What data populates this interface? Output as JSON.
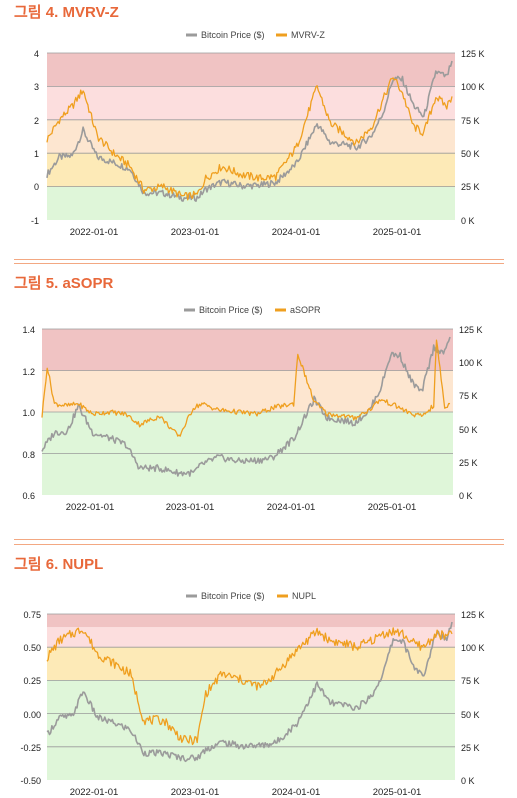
{
  "colors": {
    "title": "#e8683a",
    "price_line": "#9b9b9b",
    "metric_line": "#ef9f1f",
    "zone_red": "#f0c3c3",
    "zone_pink": "#fcdede",
    "zone_peach": "#fde6d0",
    "zone_yellow": "#fdeab7",
    "zone_green": "#dff6d9"
  },
  "panels": [
    {
      "title": "그림 4. MVRV-Z",
      "legend": [
        "Bitcoin Price ($)",
        "MVRV-Z"
      ],
      "left_ticks": [
        "4",
        "3",
        "2",
        "1",
        "0",
        "-1"
      ],
      "right_ticks": [
        "125 K",
        "100 K",
        "75 K",
        "50 K",
        "25 K",
        "0 K"
      ],
      "x_ticks": [
        "2022-01-01",
        "2023-01-01",
        "2024-01-01",
        "2025-01-01"
      ]
    },
    {
      "title": "그림 5. aSOPR",
      "legend": [
        "Bitcoin Price ($)",
        "aSOPR"
      ],
      "left_ticks": [
        "1.4",
        "1.2",
        "1.0",
        "0.8",
        "0.6"
      ],
      "right_ticks": [
        "125 K",
        "100 K",
        "75 K",
        "50 K",
        "25 K",
        "0 K"
      ],
      "x_ticks": [
        "2022-01-01",
        "2023-01-01",
        "2024-01-01",
        "2025-01-01"
      ]
    },
    {
      "title": "그림 6. NUPL",
      "legend": [
        "Bitcoin Price ($)",
        "NUPL"
      ],
      "left_ticks": [
        "0.75",
        "0.50",
        "0.25",
        "0.00",
        "-0.25",
        "-0.50"
      ],
      "right_ticks": [
        "125 K",
        "100 K",
        "75 K",
        "50 K",
        "25 K",
        "0 K"
      ],
      "x_ticks": [
        "2022-01-01",
        "2023-01-01",
        "2024-01-01",
        "2025-01-01"
      ]
    }
  ],
  "chart_data": [
    {
      "type": "line",
      "title": "그림 4. MVRV-Z",
      "x_range": [
        "2021-07-01",
        "2025-07-31"
      ],
      "ylim_left": [
        -1,
        4
      ],
      "ylim_right": [
        0,
        125000
      ],
      "zones_left": [
        [
          3,
          4
        ],
        [
          2,
          3
        ],
        [
          1,
          2
        ],
        [
          0,
          1
        ],
        [
          -1,
          0
        ]
      ],
      "series": [
        {
          "name": "Bitcoin Price ($)",
          "axis": "right",
          "points": [
            [
              "2021-07-01",
              34000
            ],
            [
              "2021-08-15",
              47000
            ],
            [
              "2021-10-01",
              48000
            ],
            [
              "2021-11-10",
              67000
            ],
            [
              "2022-01-01",
              47000
            ],
            [
              "2022-03-01",
              43000
            ],
            [
              "2022-05-01",
              38000
            ],
            [
              "2022-06-20",
              20500
            ],
            [
              "2022-09-01",
              20000
            ],
            [
              "2022-11-10",
              16500
            ],
            [
              "2023-01-01",
              16600
            ],
            [
              "2023-02-01",
              23000
            ],
            [
              "2023-04-01",
              28500
            ],
            [
              "2023-06-15",
              25500
            ],
            [
              "2023-08-20",
              26000
            ],
            [
              "2023-10-15",
              28000
            ],
            [
              "2023-12-31",
              42500
            ],
            [
              "2024-03-14",
              72000
            ],
            [
              "2024-05-01",
              58000
            ],
            [
              "2024-07-05",
              56000
            ],
            [
              "2024-08-05",
              54000
            ],
            [
              "2024-09-30",
              63500
            ],
            [
              "2024-11-10",
              80000
            ],
            [
              "2024-12-17",
              106000
            ],
            [
              "2025-01-20",
              105000
            ],
            [
              "2025-03-01",
              86000
            ],
            [
              "2025-04-08",
              77000
            ],
            [
              "2025-05-22",
              111000
            ],
            [
              "2025-07-01",
              107000
            ],
            [
              "2025-07-20",
              119000
            ]
          ]
        },
        {
          "name": "MVRV-Z",
          "axis": "left",
          "points": [
            [
              "2021-07-01",
              1.4
            ],
            [
              "2021-08-15",
              2.0
            ],
            [
              "2021-10-01",
              2.4
            ],
            [
              "2021-11-10",
              2.9
            ],
            [
              "2022-01-01",
              1.5
            ],
            [
              "2022-03-01",
              1.0
            ],
            [
              "2022-05-01",
              0.6
            ],
            [
              "2022-06-20",
              -0.1
            ],
            [
              "2022-09-01",
              0.0
            ],
            [
              "2022-11-10",
              -0.3
            ],
            [
              "2023-01-01",
              -0.25
            ],
            [
              "2023-02-01",
              0.25
            ],
            [
              "2023-04-01",
              0.6
            ],
            [
              "2023-06-15",
              0.35
            ],
            [
              "2023-08-20",
              0.25
            ],
            [
              "2023-10-15",
              0.3
            ],
            [
              "2023-12-31",
              1.2
            ],
            [
              "2024-03-14",
              3.0
            ],
            [
              "2024-05-01",
              1.9
            ],
            [
              "2024-07-05",
              1.5
            ],
            [
              "2024-08-05",
              1.3
            ],
            [
              "2024-09-30",
              1.8
            ],
            [
              "2024-11-10",
              2.6
            ],
            [
              "2024-12-17",
              3.3
            ],
            [
              "2025-01-20",
              2.8
            ],
            [
              "2025-03-01",
              1.8
            ],
            [
              "2025-04-08",
              1.6
            ],
            [
              "2025-05-22",
              2.7
            ],
            [
              "2025-07-01",
              2.4
            ],
            [
              "2025-07-20",
              2.7
            ]
          ]
        }
      ]
    },
    {
      "type": "line",
      "title": "그림 5. aSOPR",
      "x_range": [
        "2021-07-01",
        "2025-07-31"
      ],
      "ylim_left": [
        0.6,
        1.4
      ],
      "ylim_right": [
        0,
        125000
      ],
      "zones_left": [
        [
          1.2,
          1.4
        ],
        [
          1.0,
          1.2
        ],
        [
          0.6,
          1.0
        ]
      ],
      "series": [
        {
          "name": "Bitcoin Price ($)",
          "axis": "right",
          "points": [
            [
              "2021-07-01",
              34000
            ],
            [
              "2021-08-15",
              47000
            ],
            [
              "2021-10-01",
              48000
            ],
            [
              "2021-11-10",
              67000
            ],
            [
              "2022-01-01",
              47000
            ],
            [
              "2022-03-01",
              43000
            ],
            [
              "2022-05-01",
              38000
            ],
            [
              "2022-06-20",
              20500
            ],
            [
              "2022-09-01",
              20000
            ],
            [
              "2022-11-10",
              16500
            ],
            [
              "2023-01-01",
              16600
            ],
            [
              "2023-02-01",
              23000
            ],
            [
              "2023-04-01",
              28500
            ],
            [
              "2023-06-15",
              25500
            ],
            [
              "2023-08-20",
              26000
            ],
            [
              "2023-10-15",
              28000
            ],
            [
              "2023-12-31",
              42500
            ],
            [
              "2024-03-14",
              72000
            ],
            [
              "2024-05-01",
              58000
            ],
            [
              "2024-07-05",
              56000
            ],
            [
              "2024-08-05",
              54000
            ],
            [
              "2024-09-30",
              63500
            ],
            [
              "2024-11-10",
              80000
            ],
            [
              "2024-12-17",
              106000
            ],
            [
              "2025-01-20",
              105000
            ],
            [
              "2025-03-01",
              86000
            ],
            [
              "2025-04-08",
              77000
            ],
            [
              "2025-05-22",
              111000
            ],
            [
              "2025-07-01",
              107000
            ],
            [
              "2025-07-20",
              119000
            ]
          ]
        },
        {
          "name": "aSOPR",
          "axis": "left",
          "points": [
            [
              "2021-07-01",
              0.98
            ],
            [
              "2021-07-20",
              1.22
            ],
            [
              "2021-08-15",
              1.04
            ],
            [
              "2021-10-01",
              1.03
            ],
            [
              "2021-11-10",
              1.04
            ],
            [
              "2022-01-01",
              0.99
            ],
            [
              "2022-03-01",
              1.0
            ],
            [
              "2022-05-01",
              0.99
            ],
            [
              "2022-06-20",
              0.94
            ],
            [
              "2022-09-01",
              0.98
            ],
            [
              "2022-11-10",
              0.88
            ],
            [
              "2023-01-01",
              1.02
            ],
            [
              "2023-02-01",
              1.04
            ],
            [
              "2023-04-01",
              1.01
            ],
            [
              "2023-06-15",
              1.0
            ],
            [
              "2023-08-20",
              0.99
            ],
            [
              "2023-10-15",
              1.02
            ],
            [
              "2023-12-31",
              1.04
            ],
            [
              "2024-01-15",
              1.28
            ],
            [
              "2024-03-14",
              1.05
            ],
            [
              "2024-05-01",
              0.99
            ],
            [
              "2024-07-05",
              0.98
            ],
            [
              "2024-08-05",
              0.97
            ],
            [
              "2024-09-30",
              1.01
            ],
            [
              "2024-11-10",
              1.06
            ],
            [
              "2024-12-17",
              1.04
            ],
            [
              "2025-01-20",
              1.02
            ],
            [
              "2025-03-01",
              0.99
            ],
            [
              "2025-04-08",
              0.98
            ],
            [
              "2025-05-22",
              1.03
            ],
            [
              "2025-06-01",
              1.35
            ],
            [
              "2025-07-01",
              1.02
            ],
            [
              "2025-07-20",
              1.04
            ]
          ]
        }
      ]
    },
    {
      "type": "line",
      "title": "그림 6. NUPL",
      "x_range": [
        "2021-07-01",
        "2025-07-31"
      ],
      "ylim_left": [
        -0.5,
        0.75
      ],
      "ylim_right": [
        0,
        125000
      ],
      "zones_left": [
        [
          0.65,
          0.75
        ],
        [
          0.5,
          0.65
        ],
        [
          0.25,
          0.5
        ],
        [
          -0.5,
          0.25
        ]
      ],
      "series": [
        {
          "name": "Bitcoin Price ($)",
          "axis": "right",
          "points": [
            [
              "2021-07-01",
              34000
            ],
            [
              "2021-08-15",
              47000
            ],
            [
              "2021-10-01",
              48000
            ],
            [
              "2021-11-10",
              67000
            ],
            [
              "2022-01-01",
              47000
            ],
            [
              "2022-03-01",
              43000
            ],
            [
              "2022-05-01",
              38000
            ],
            [
              "2022-06-20",
              20500
            ],
            [
              "2022-09-01",
              20000
            ],
            [
              "2022-11-10",
              16500
            ],
            [
              "2023-01-01",
              16600
            ],
            [
              "2023-02-01",
              23000
            ],
            [
              "2023-04-01",
              28500
            ],
            [
              "2023-06-15",
              25500
            ],
            [
              "2023-08-20",
              26000
            ],
            [
              "2023-10-15",
              28000
            ],
            [
              "2023-12-31",
              42500
            ],
            [
              "2024-03-14",
              72000
            ],
            [
              "2024-05-01",
              58000
            ],
            [
              "2024-07-05",
              56000
            ],
            [
              "2024-08-05",
              54000
            ],
            [
              "2024-09-30",
              63500
            ],
            [
              "2024-11-10",
              80000
            ],
            [
              "2024-12-17",
              106000
            ],
            [
              "2025-01-20",
              105000
            ],
            [
              "2025-03-01",
              86000
            ],
            [
              "2025-04-08",
              77000
            ],
            [
              "2025-05-22",
              111000
            ],
            [
              "2025-07-01",
              107000
            ],
            [
              "2025-07-20",
              119000
            ]
          ]
        },
        {
          "name": "NUPL",
          "axis": "left",
          "points": [
            [
              "2021-07-01",
              0.42
            ],
            [
              "2021-08-15",
              0.55
            ],
            [
              "2021-10-01",
              0.6
            ],
            [
              "2021-11-10",
              0.64
            ],
            [
              "2022-01-01",
              0.45
            ],
            [
              "2022-03-01",
              0.38
            ],
            [
              "2022-05-01",
              0.3
            ],
            [
              "2022-06-20",
              -0.05
            ],
            [
              "2022-09-01",
              -0.05
            ],
            [
              "2022-11-10",
              -0.2
            ],
            [
              "2023-01-01",
              -0.2
            ],
            [
              "2023-02-01",
              0.15
            ],
            [
              "2023-04-01",
              0.3
            ],
            [
              "2023-06-15",
              0.25
            ],
            [
              "2023-08-20",
              0.2
            ],
            [
              "2023-10-15",
              0.3
            ],
            [
              "2023-12-31",
              0.48
            ],
            [
              "2024-03-14",
              0.62
            ],
            [
              "2024-05-01",
              0.55
            ],
            [
              "2024-07-05",
              0.52
            ],
            [
              "2024-08-05",
              0.5
            ],
            [
              "2024-09-30",
              0.55
            ],
            [
              "2024-11-10",
              0.6
            ],
            [
              "2024-12-17",
              0.62
            ],
            [
              "2025-01-20",
              0.6
            ],
            [
              "2025-03-01",
              0.53
            ],
            [
              "2025-04-08",
              0.5
            ],
            [
              "2025-05-22",
              0.6
            ],
            [
              "2025-07-01",
              0.58
            ],
            [
              "2025-07-20",
              0.6
            ]
          ]
        }
      ]
    }
  ]
}
